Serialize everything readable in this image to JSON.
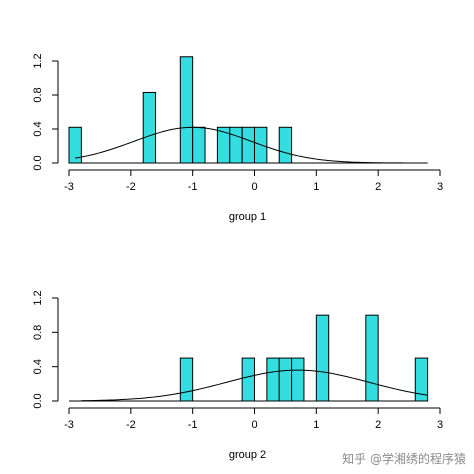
{
  "chart_data": [
    {
      "type": "bar",
      "xlabel": "group 1",
      "ylabel": "",
      "title": "",
      "xlim": [
        -3,
        3
      ],
      "ylim": [
        0,
        1.2
      ],
      "x_ticks": [
        -3,
        -2,
        -1,
        0,
        1,
        2,
        3
      ],
      "x_tick_labels": [
        "-3",
        "-2",
        "-1",
        "0",
        "1",
        "2",
        "3"
      ],
      "y_ticks": [
        0,
        0.4,
        0.8,
        1.2
      ],
      "y_tick_labels": [
        "0.0",
        "0.4",
        "0.8",
        "1.2"
      ],
      "bin_width": 0.2,
      "bars": [
        {
          "x0": -3.0,
          "x1": -2.8,
          "value": 0.42
        },
        {
          "x0": -1.8,
          "x1": -1.6,
          "value": 0.83
        },
        {
          "x0": -1.2,
          "x1": -1.0,
          "value": 1.25
        },
        {
          "x0": -1.0,
          "x1": -0.8,
          "value": 0.42
        },
        {
          "x0": -0.6,
          "x1": -0.4,
          "value": 0.42
        },
        {
          "x0": -0.4,
          "x1": -0.2,
          "value": 0.42
        },
        {
          "x0": -0.2,
          "x1": 0.0,
          "value": 0.42
        },
        {
          "x0": 0.0,
          "x1": 0.2,
          "value": 0.42
        },
        {
          "x0": 0.4,
          "x1": 0.6,
          "value": 0.42
        }
      ],
      "density": {
        "mean": -1.0,
        "sd": 0.95,
        "peak": 0.42,
        "x_from": -2.9,
        "x_to": 2.8
      },
      "bar_color": "#33dde0",
      "grid": false
    },
    {
      "type": "bar",
      "xlabel": "group 2",
      "ylabel": "",
      "title": "",
      "xlim": [
        -3,
        3
      ],
      "ylim": [
        0,
        1.2
      ],
      "x_ticks": [
        -3,
        -2,
        -1,
        0,
        1,
        2,
        3
      ],
      "x_tick_labels": [
        "-3",
        "-2",
        "-1",
        "0",
        "1",
        "2",
        "3"
      ],
      "y_ticks": [
        0,
        0.4,
        0.8,
        1.2
      ],
      "y_tick_labels": [
        "0.0",
        "0.4",
        "0.8",
        "1.2"
      ],
      "bin_width": 0.2,
      "bars": [
        {
          "x0": -1.2,
          "x1": -1.0,
          "value": 0.5
        },
        {
          "x0": -0.2,
          "x1": 0.0,
          "value": 0.5
        },
        {
          "x0": 0.2,
          "x1": 0.4,
          "value": 0.5
        },
        {
          "x0": 0.4,
          "x1": 0.6,
          "value": 0.5
        },
        {
          "x0": 0.6,
          "x1": 0.8,
          "value": 0.5
        },
        {
          "x0": 1.0,
          "x1": 1.2,
          "value": 1.0
        },
        {
          "x0": 1.8,
          "x1": 2.0,
          "value": 1.0
        },
        {
          "x0": 2.6,
          "x1": 2.8,
          "value": 0.5
        }
      ],
      "density": {
        "mean": 0.7,
        "sd": 1.15,
        "peak": 0.36,
        "x_from": -2.8,
        "x_to": 2.8
      },
      "bar_color": "#33dde0",
      "grid": false
    }
  ],
  "watermark": {
    "text": "知乎 @学湘绣的程序猿"
  }
}
